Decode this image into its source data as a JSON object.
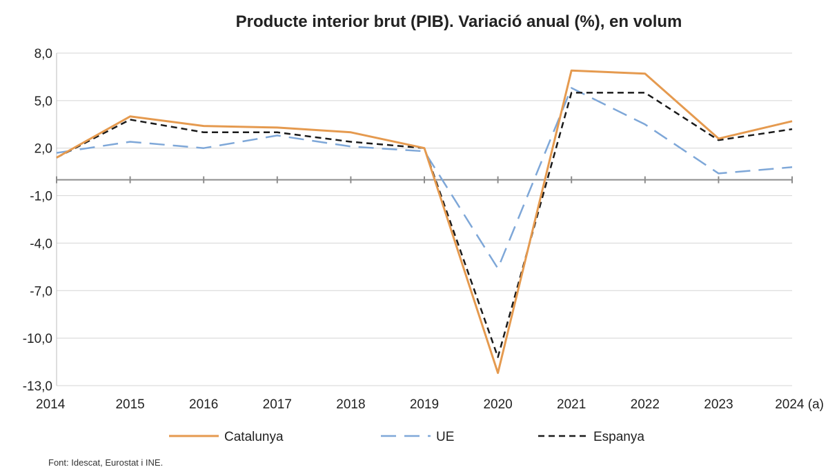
{
  "chart_data": {
    "type": "line",
    "title": "Producte interior brut (PIB). Variació anual (%), en volum",
    "categories": [
      "2014",
      "2015",
      "2016",
      "2017",
      "2018",
      "2019",
      "2020",
      "2021",
      "2022",
      "2023",
      "2024 (a)"
    ],
    "series": [
      {
        "name": "Catalunya",
        "color": "#e59a4f",
        "style": "solid",
        "values": [
          1.4,
          4.0,
          3.4,
          3.3,
          3.0,
          2.0,
          -12.2,
          6.9,
          6.7,
          2.6,
          3.7
        ]
      },
      {
        "name": "UE",
        "color": "#7ea7d8",
        "style": "long-dash",
        "values": [
          1.7,
          2.4,
          2.0,
          2.8,
          2.1,
          1.8,
          -5.6,
          5.8,
          3.5,
          0.4,
          0.8
        ]
      },
      {
        "name": "Espanya",
        "color": "#1a1a1a",
        "style": "short-dash",
        "values": [
          1.4,
          3.8,
          3.0,
          3.0,
          2.4,
          2.0,
          -11.2,
          5.5,
          5.5,
          2.5,
          3.2
        ]
      }
    ],
    "y_ticks": [
      "8,0",
      "5,0",
      "2,0",
      "-1,0",
      "-4,0",
      "-7,0",
      "-10,0",
      "-13,0"
    ],
    "y_tick_values": [
      8,
      5,
      2,
      -1,
      -4,
      -7,
      -10,
      -13
    ],
    "ylim": [
      -13,
      8
    ],
    "grid": true,
    "legend_position": "bottom",
    "xlabel": "",
    "ylabel": ""
  },
  "source_note": "Font: Idescat, Eurostat i INE."
}
